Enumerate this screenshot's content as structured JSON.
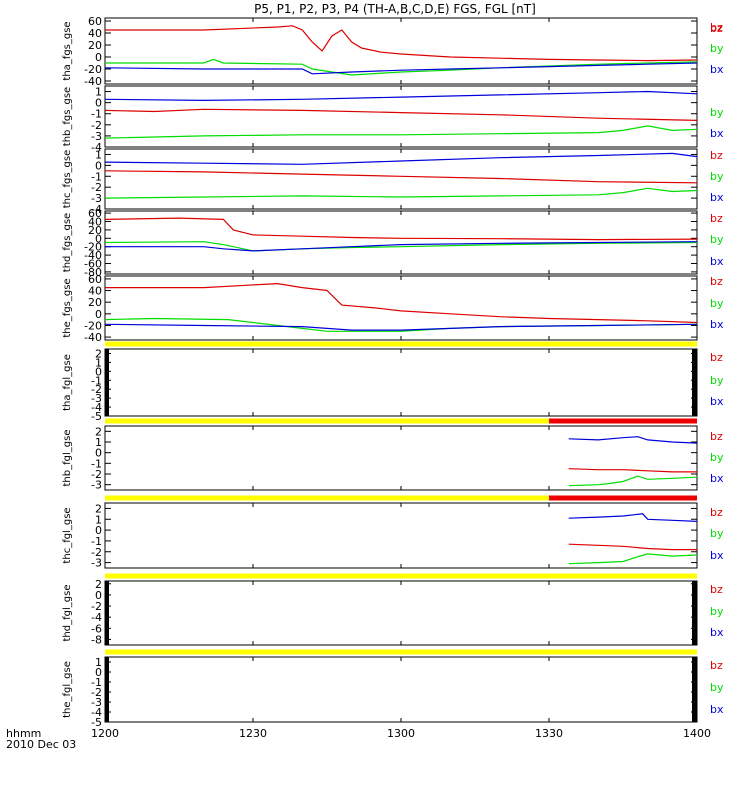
{
  "title": "P5, P1, P2, P3, P4 (TH-A,B,C,D,E) FGS, FGL [nT]",
  "time_axis": {
    "ticks": [
      "1200",
      "1230",
      "1300",
      "1330",
      "1400"
    ],
    "start_minutes": 720,
    "end_minutes": 840,
    "label_line1": "hhmm",
    "label_line2": "2010 Dec 03"
  },
  "colors": {
    "bx": "#0000dd",
    "by": "#00dd00",
    "bz": "#dd0000",
    "bar_yellow": "#ffff00",
    "bar_red": "#ee0000",
    "axis": "#000000"
  },
  "legend_labels": [
    "bz",
    "by",
    "bx"
  ],
  "chart_data": [
    {
      "type": "line",
      "ylabel": "tha_fgs_gse",
      "ylim": [
        -45,
        65
      ],
      "yticks": [
        60,
        40,
        20,
        0,
        -20,
        -40
      ],
      "series": [
        {
          "name": "bz",
          "x": [
            720,
            740,
            755,
            758,
            760,
            762,
            764,
            766,
            768,
            770,
            772,
            776,
            780,
            790,
            800,
            810,
            820,
            830,
            840
          ],
          "y": [
            45,
            45,
            50,
            52,
            45,
            25,
            10,
            35,
            45,
            25,
            15,
            8,
            5,
            0,
            -2,
            -4,
            -5,
            -6,
            -5
          ]
        },
        {
          "name": "by",
          "x": [
            720,
            740,
            742,
            744,
            760,
            762,
            770,
            780,
            790,
            800,
            810,
            820,
            830,
            840
          ],
          "y": [
            -10,
            -10,
            -4,
            -10,
            -12,
            -20,
            -30,
            -25,
            -22,
            -18,
            -15,
            -12,
            -10,
            -8
          ]
        },
        {
          "name": "bx",
          "x": [
            720,
            740,
            760,
            762,
            770,
            780,
            790,
            800,
            810,
            820,
            830,
            840
          ],
          "y": [
            -18,
            -20,
            -20,
            -28,
            -25,
            -22,
            -20,
            -18,
            -16,
            -14,
            -12,
            -10
          ]
        }
      ]
    },
    {
      "type": "line",
      "ylabel": "thb_fgs_gse",
      "ylim": [
        -4,
        1.5
      ],
      "yticks": [
        1,
        0,
        -1,
        -2,
        -3,
        -4
      ],
      "series": [
        {
          "name": "bz",
          "x": [
            720,
            730,
            740,
            760,
            780,
            800,
            820,
            840
          ],
          "y": [
            -0.7,
            -0.8,
            -0.6,
            -0.7,
            -0.9,
            -1.1,
            -1.4,
            -1.6
          ]
        },
        {
          "name": "by",
          "x": [
            720,
            740,
            760,
            780,
            800,
            820,
            825,
            830,
            835,
            840
          ],
          "y": [
            -3.2,
            -3.0,
            -2.9,
            -2.9,
            -2.8,
            -2.7,
            -2.5,
            -2.1,
            -2.5,
            -2.4
          ]
        },
        {
          "name": "bx",
          "x": [
            720,
            740,
            760,
            780,
            800,
            820,
            830,
            840
          ],
          "y": [
            0.3,
            0.2,
            0.3,
            0.5,
            0.7,
            0.9,
            1.0,
            0.8
          ]
        }
      ]
    },
    {
      "type": "line",
      "ylabel": "thc_fgs_gse",
      "ylim": [
        -4,
        1.5
      ],
      "yticks": [
        1,
        0,
        -1,
        -2,
        -3,
        -4
      ],
      "series": [
        {
          "name": "bz",
          "x": [
            720,
            740,
            760,
            780,
            800,
            820,
            840
          ],
          "y": [
            -0.5,
            -0.6,
            -0.8,
            -1.0,
            -1.2,
            -1.5,
            -1.6
          ]
        },
        {
          "name": "by",
          "x": [
            720,
            740,
            760,
            780,
            800,
            820,
            825,
            830,
            835,
            840
          ],
          "y": [
            -3.0,
            -2.9,
            -2.8,
            -2.9,
            -2.8,
            -2.7,
            -2.5,
            -2.1,
            -2.4,
            -2.3
          ]
        },
        {
          "name": "bx",
          "x": [
            720,
            740,
            760,
            780,
            800,
            820,
            835,
            840
          ],
          "y": [
            0.3,
            0.2,
            0.1,
            0.4,
            0.7,
            0.9,
            1.1,
            0.8
          ]
        }
      ]
    },
    {
      "type": "line",
      "ylabel": "thd_fgs_gse",
      "ylim": [
        -85,
        65
      ],
      "yticks": [
        60,
        40,
        20,
        0,
        -20,
        -40,
        -60,
        -80
      ],
      "series": [
        {
          "name": "bz",
          "x": [
            720,
            735,
            744,
            746,
            750,
            760,
            770,
            780,
            800,
            820,
            840
          ],
          "y": [
            45,
            48,
            45,
            20,
            8,
            5,
            2,
            0,
            -1,
            -3,
            -2
          ]
        },
        {
          "name": "by",
          "x": [
            720,
            740,
            744,
            750,
            760,
            770,
            780,
            800,
            820,
            840
          ],
          "y": [
            -10,
            -8,
            -15,
            -30,
            -25,
            -22,
            -20,
            -15,
            -12,
            -10
          ]
        },
        {
          "name": "bx",
          "x": [
            720,
            740,
            744,
            750,
            760,
            770,
            780,
            800,
            820,
            840
          ],
          "y": [
            -20,
            -20,
            -25,
            -30,
            -25,
            -20,
            -15,
            -12,
            -10,
            -8
          ]
        }
      ]
    },
    {
      "type": "line",
      "ylabel": "the_fgs_gse",
      "ylim": [
        -45,
        65
      ],
      "yticks": [
        60,
        40,
        20,
        0,
        -20,
        -40
      ],
      "series": [
        {
          "name": "bz",
          "x": [
            720,
            740,
            755,
            760,
            765,
            768,
            775,
            780,
            790,
            800,
            810,
            820,
            830,
            840
          ],
          "y": [
            45,
            45,
            52,
            45,
            40,
            15,
            10,
            5,
            0,
            -5,
            -8,
            -10,
            -12,
            -15
          ]
        },
        {
          "name": "by",
          "x": [
            720,
            730,
            745,
            760,
            765,
            770,
            780,
            790,
            800,
            820,
            840
          ],
          "y": [
            -10,
            -8,
            -10,
            -25,
            -30,
            -30,
            -30,
            -25,
            -22,
            -20,
            -18
          ]
        },
        {
          "name": "bx",
          "x": [
            720,
            740,
            760,
            770,
            780,
            790,
            800,
            820,
            840
          ],
          "y": [
            -18,
            -20,
            -22,
            -28,
            -28,
            -25,
            -22,
            -20,
            -18
          ]
        }
      ]
    },
    {
      "type": "line",
      "ylabel": "tha_fgl_gse",
      "ylim": [
        -5,
        2.5
      ],
      "yticks": [
        2,
        1,
        0,
        -1,
        -2,
        -3,
        -4,
        -5
      ],
      "bar_red_from": null,
      "series": []
    },
    {
      "type": "line",
      "ylabel": "thb_fgl_gse",
      "ylim": [
        -3.5,
        2.5
      ],
      "yticks": [
        2,
        1,
        0,
        -1,
        -2,
        -3
      ],
      "bar_red_from": 810,
      "series": [
        {
          "name": "bz",
          "x": [
            814,
            820,
            825,
            830,
            835,
            840
          ],
          "y": [
            -1.5,
            -1.6,
            -1.6,
            -1.7,
            -1.8,
            -1.8
          ]
        },
        {
          "name": "by",
          "x": [
            814,
            820,
            822,
            825,
            828,
            830,
            835,
            840
          ],
          "y": [
            -3.1,
            -3.0,
            -2.9,
            -2.7,
            -2.2,
            -2.5,
            -2.4,
            -2.3
          ]
        },
        {
          "name": "bx",
          "x": [
            814,
            820,
            825,
            828,
            830,
            835,
            840
          ],
          "y": [
            1.3,
            1.2,
            1.4,
            1.5,
            1.2,
            1.0,
            0.9
          ]
        }
      ]
    },
    {
      "type": "line",
      "ylabel": "thc_fgl_gse",
      "ylim": [
        -3.5,
        2.5
      ],
      "yticks": [
        2,
        1,
        0,
        -1,
        -2,
        -3
      ],
      "bar_red_from": 810,
      "series": [
        {
          "name": "bz",
          "x": [
            814,
            820,
            825,
            830,
            835,
            840
          ],
          "y": [
            -1.3,
            -1.4,
            -1.5,
            -1.7,
            -1.8,
            -1.8
          ]
        },
        {
          "name": "by",
          "x": [
            814,
            820,
            825,
            827,
            830,
            835,
            840
          ],
          "y": [
            -3.1,
            -3.0,
            -2.9,
            -2.6,
            -2.2,
            -2.4,
            -2.3
          ]
        },
        {
          "name": "bx",
          "x": [
            814,
            820,
            825,
            829,
            830,
            835,
            840
          ],
          "y": [
            1.1,
            1.2,
            1.3,
            1.5,
            1.0,
            0.9,
            0.8
          ]
        }
      ]
    },
    {
      "type": "line",
      "ylabel": "thd_fgl_gse",
      "ylim": [
        -9,
        2.5
      ],
      "yticks": [
        2,
        0,
        -2,
        -4,
        -6,
        -8
      ],
      "bar_red_from": null,
      "series": []
    },
    {
      "type": "line",
      "ylabel": "the_fgl_gse",
      "ylim": [
        -5,
        1.5
      ],
      "yticks": [
        1,
        0,
        -1,
        -2,
        -3,
        -4,
        -5
      ],
      "bar_red_from": null,
      "series": []
    }
  ]
}
